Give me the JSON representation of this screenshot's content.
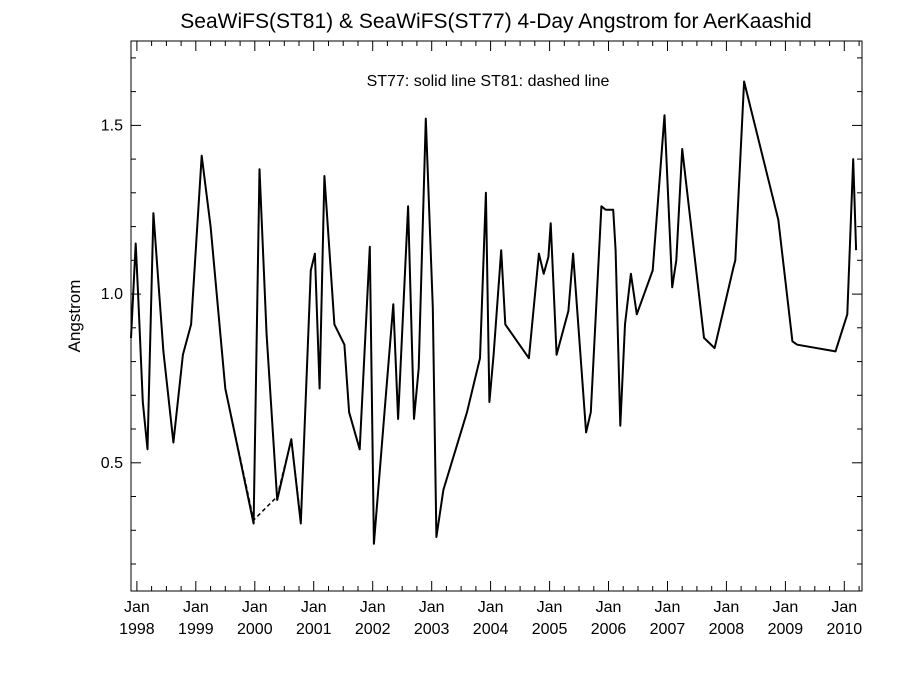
{
  "chart_data": {
    "type": "line",
    "title": "SeaWiFS(ST81) & SeaWiFS(ST77) 4-Day Angstrom for AerKaashid",
    "ylabel": "Angstrom",
    "xlabel": "",
    "annotation": "ST77: solid line   ST81: dashed line",
    "xlim": [
      1997.9,
      2010.3
    ],
    "ylim": [
      0.12,
      1.75
    ],
    "y_ticks": [
      {
        "value": 0.5,
        "label": "0.5"
      },
      {
        "value": 1.0,
        "label": "1.0"
      },
      {
        "value": 1.5,
        "label": "1.5"
      }
    ],
    "x_ticks": [
      {
        "value": 1998,
        "month": "Jan",
        "year": "1998"
      },
      {
        "value": 1999,
        "month": "Jan",
        "year": "1999"
      },
      {
        "value": 2000,
        "month": "Jan",
        "year": "2000"
      },
      {
        "value": 2001,
        "month": "Jan",
        "year": "2001"
      },
      {
        "value": 2002,
        "month": "Jan",
        "year": "2002"
      },
      {
        "value": 2003,
        "month": "Jan",
        "year": "2003"
      },
      {
        "value": 2004,
        "month": "Jan",
        "year": "2004"
      },
      {
        "value": 2005,
        "month": "Jan",
        "year": "2005"
      },
      {
        "value": 2006,
        "month": "Jan",
        "year": "2006"
      },
      {
        "value": 2007,
        "month": "Jan",
        "year": "2007"
      },
      {
        "value": 2008,
        "month": "Jan",
        "year": "2008"
      },
      {
        "value": 2009,
        "month": "Jan",
        "year": "2009"
      },
      {
        "value": 2010,
        "month": "Jan",
        "year": "2010"
      }
    ],
    "grid": false,
    "series": [
      {
        "name": "ST77",
        "style": "solid",
        "color": "#000000",
        "x": [
          1997.9,
          1997.98,
          1998.02,
          1998.1,
          1998.18,
          1998.28,
          1998.45,
          1998.62,
          1998.78,
          1998.92,
          1999.1,
          1999.25,
          1999.5,
          1999.98,
          2000.08,
          2000.2,
          2000.38,
          2000.62,
          2000.78,
          2000.95,
          2001.02,
          2001.1,
          2001.18,
          2001.35,
          2001.52,
          2001.6,
          2001.78,
          2001.95,
          2002.02,
          2002.2,
          2002.35,
          2002.43,
          2002.6,
          2002.7,
          2002.78,
          2002.9,
          2003.02,
          2003.08,
          2003.2,
          2003.6,
          2003.82,
          2003.92,
          2003.98,
          2004.05,
          2004.18,
          2004.25,
          2004.45,
          2004.65,
          2004.82,
          2004.9,
          2004.98,
          2005.02,
          2005.12,
          2005.32,
          2005.4,
          2005.62,
          2005.7,
          2005.88,
          2005.95,
          2006.08,
          2006.12,
          2006.2,
          2006.28,
          2006.38,
          2006.48,
          2006.75,
          2006.95,
          2007.08,
          2007.15,
          2007.25,
          2007.62,
          2007.8,
          2008.12,
          2008.15,
          2008.3,
          2008.88,
          2009.12,
          2009.2,
          2009.85,
          2010.05,
          2010.15,
          2010.2
        ],
        "y": [
          0.87,
          1.15,
          1.0,
          0.68,
          0.54,
          1.24,
          0.83,
          0.56,
          0.82,
          0.91,
          1.41,
          1.2,
          0.72,
          0.32,
          1.37,
          0.88,
          0.39,
          0.57,
          0.32,
          1.07,
          1.12,
          0.72,
          1.35,
          0.91,
          0.85,
          0.65,
          0.54,
          1.14,
          0.26,
          0.65,
          0.97,
          0.63,
          1.26,
          0.63,
          0.78,
          1.52,
          0.96,
          0.28,
          0.42,
          0.65,
          0.81,
          1.3,
          0.68,
          0.82,
          1.13,
          0.91,
          0.86,
          0.81,
          1.12,
          1.06,
          1.11,
          1.21,
          0.82,
          0.95,
          1.12,
          0.59,
          0.65,
          1.26,
          1.25,
          1.25,
          1.13,
          0.61,
          0.91,
          1.06,
          0.94,
          1.07,
          1.53,
          1.02,
          1.1,
          1.43,
          0.87,
          0.84,
          1.08,
          1.1,
          1.63,
          1.22,
          0.86,
          0.85,
          0.83,
          0.94,
          1.4,
          1.13
        ]
      },
      {
        "name": "ST81",
        "style": "dashed",
        "color": "#000000",
        "x": [
          1999.5,
          1999.98,
          2000.38,
          2000.62,
          2000.78
        ],
        "y": [
          0.72,
          0.33,
          0.4,
          0.57,
          0.33
        ]
      }
    ]
  }
}
